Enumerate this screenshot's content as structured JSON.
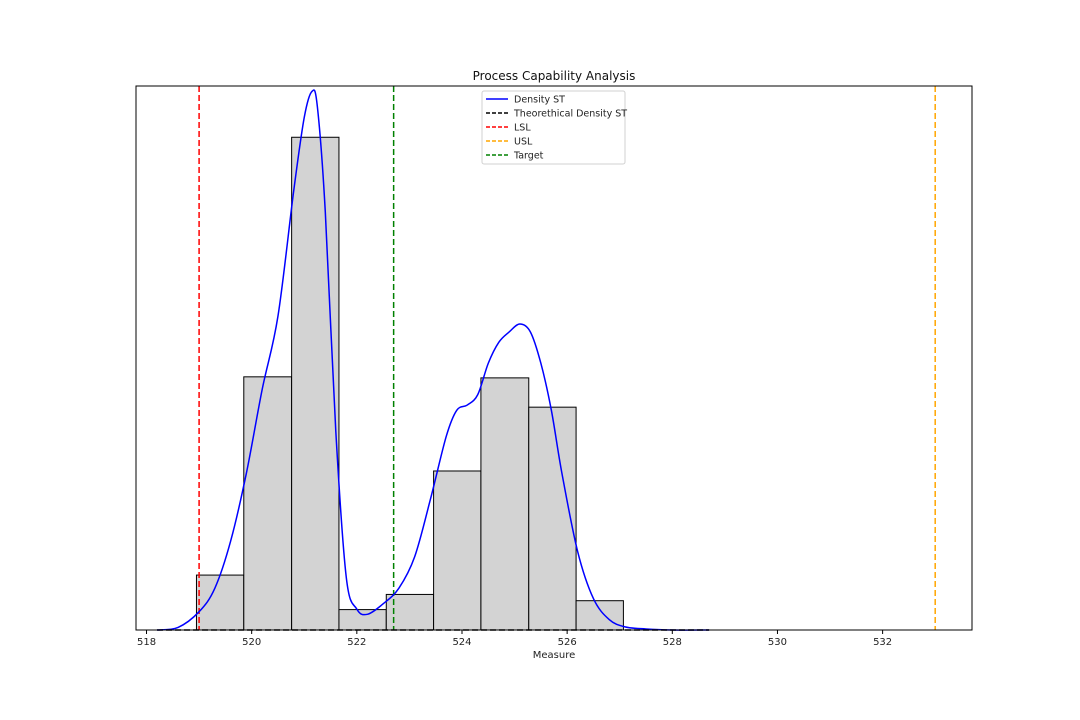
{
  "chart_data": {
    "type": "histogram",
    "title": "Process Capability Analysis",
    "xlabel": "Measure",
    "ylabel": "",
    "xlim": [
      517.8,
      533.7
    ],
    "ylim": [
      0,
      1.04
    ],
    "xticks": [
      518,
      520,
      522,
      524,
      526,
      528,
      530,
      532
    ],
    "legend_position": "upper-center",
    "histogram": {
      "bin_edges": [
        518.95,
        519.85,
        520.76,
        521.66,
        522.56,
        523.46,
        524.36,
        525.27,
        526.17,
        527.07
      ],
      "heights": [
        0.105,
        0.484,
        0.942,
        0.039,
        0.068,
        0.304,
        0.482,
        0.426,
        0.056
      ],
      "fill": "#d3d3d3",
      "edge": "#000000"
    },
    "series": [
      {
        "name": "Density ST",
        "style": "solid",
        "color": "#0000ff",
        "x": [
          518.2,
          518.6,
          519.0,
          519.3,
          519.6,
          519.9,
          520.2,
          520.5,
          520.8,
          521.0,
          521.15,
          521.25,
          521.4,
          521.6,
          521.8,
          522.0,
          522.2,
          522.5,
          522.8,
          523.1,
          523.4,
          523.7,
          523.9,
          524.1,
          524.3,
          524.5,
          524.7,
          524.9,
          525.1,
          525.3,
          525.5,
          525.7,
          525.9,
          526.2,
          526.5,
          526.8,
          527.1,
          527.5,
          528.0,
          528.7
        ],
        "y": [
          0.0,
          0.005,
          0.035,
          0.08,
          0.17,
          0.3,
          0.46,
          0.6,
          0.84,
          0.98,
          1.03,
          1.0,
          0.8,
          0.38,
          0.1,
          0.04,
          0.03,
          0.05,
          0.08,
          0.14,
          0.25,
          0.37,
          0.42,
          0.43,
          0.45,
          0.51,
          0.55,
          0.57,
          0.585,
          0.57,
          0.51,
          0.42,
          0.3,
          0.15,
          0.06,
          0.02,
          0.006,
          0.002,
          0.0,
          0.0
        ]
      },
      {
        "name": "Theorethical Density ST",
        "style": "dashed",
        "color": "#000000",
        "x": [
          518.2,
          528.7
        ],
        "y": [
          0.0,
          0.0
        ]
      }
    ],
    "vlines": [
      {
        "name": "LSL",
        "x": 519.0,
        "color": "#ff0000"
      },
      {
        "name": "USL",
        "x": 533.0,
        "color": "#ffa500"
      },
      {
        "name": "Target",
        "x": 522.7,
        "color": "#008000"
      }
    ],
    "legend": [
      "Density ST",
      "Theorethical Density ST",
      "LSL",
      "USL",
      "Target"
    ]
  }
}
